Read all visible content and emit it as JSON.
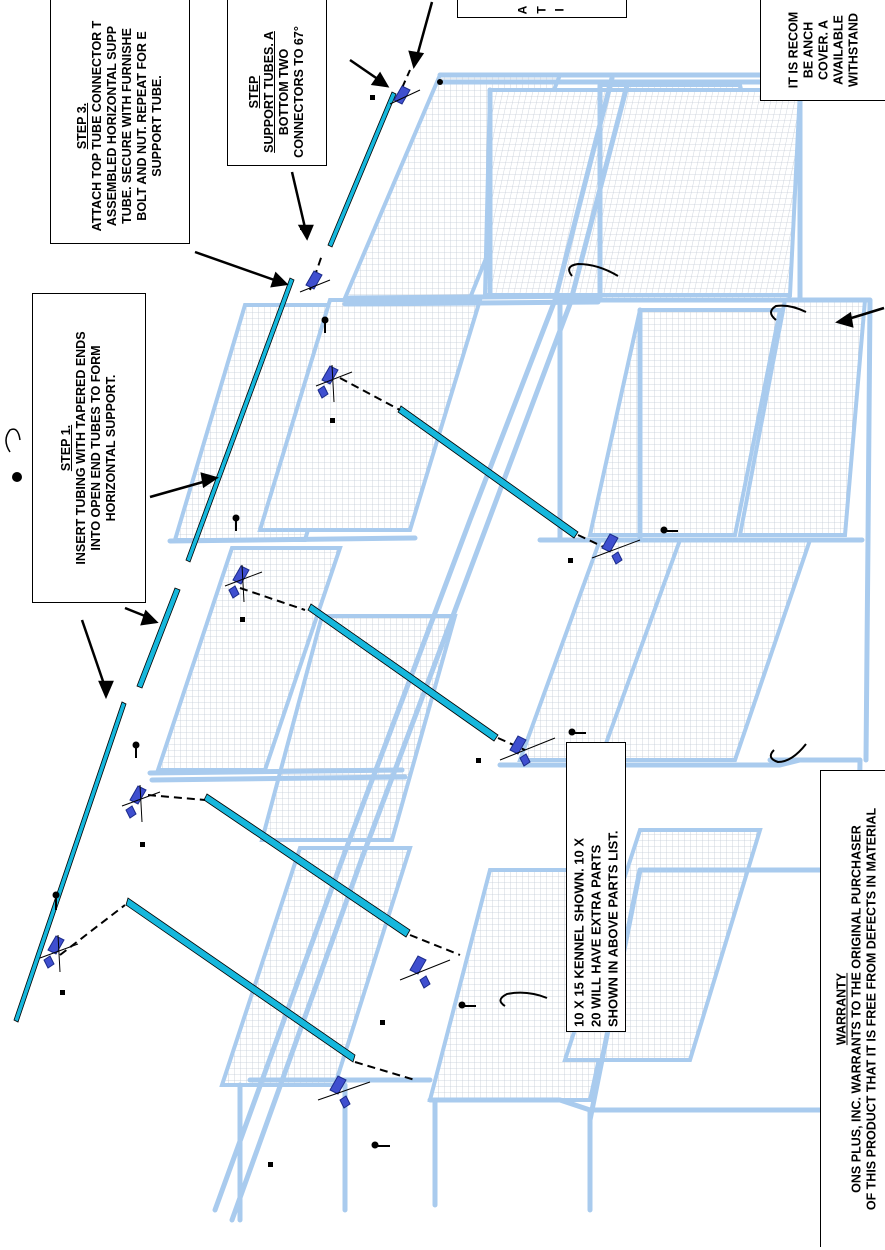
{
  "colors": {
    "frame": "#a9cbee",
    "mesh": "#c3cbd6",
    "tube": "#16b7dc",
    "connector": "#3f4fcf",
    "ink": "#000000"
  },
  "notes": {
    "step1": {
      "heading": "STEP 1.",
      "lines": [
        "INSERT TUBING WITH TAPERED ENDS",
        "INTO OPEN END TUBES TO FORM",
        "HORIZONTAL SUPPORT."
      ]
    },
    "step2": {
      "heading": "STEP",
      "lines": [
        "SUPPORT TUBES. A",
        "BOTTOM TWO",
        "CONNECTORS TO 67°"
      ]
    },
    "step3": {
      "heading": "STEP 3.",
      "lines": [
        "ATTACH TOP TUBE CONNECTOR T",
        "ASSEMBLED HORIZONTAL SUPP",
        "TUBE. SECURE WITH FURNISHE",
        "BOLT AND NUT. REPEAT FOR E",
        "SUPPORT TUBE."
      ]
    },
    "top_box": {
      "lines": [
        "A",
        "T",
        "I"
      ]
    },
    "anchor": {
      "lines": [
        "IT IS RECOM",
        "BE ANCH",
        "COVER. A",
        "AVAILABLE",
        "WITHSTAND"
      ]
    },
    "kennel": {
      "lines": [
        "10 X 15 KENNEL SHOWN. 10 X",
        "20 WILL HAVE EXTRA PARTS",
        "SHOWN IN ABOVE PARTS LIST."
      ]
    },
    "warranty": {
      "heading": "WARRANTY",
      "lines": [
        "ONS PLUS, INC. WARRANTS TO THE ORIGINAL PURCHASER",
        "OF THIS PRODUCT THAT IT IS FREE FROM DEFECTS IN MATERIAL"
      ]
    }
  }
}
